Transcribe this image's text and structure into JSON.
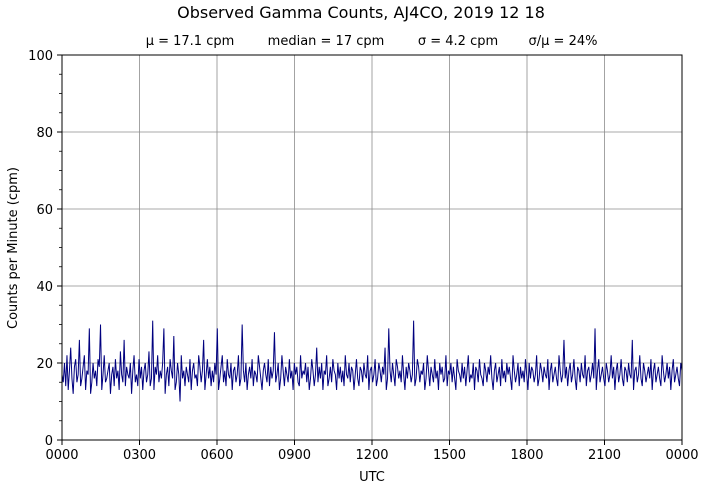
{
  "chart_data": {
    "type": "line",
    "title": "Observed Gamma Counts, AJ4CO, 2019 12 18",
    "subtitle_stats": [
      "μ = 17.1 cpm",
      "median = 17 cpm",
      "σ = 4.2 cpm",
      "σ/μ = 24%"
    ],
    "xlabel": "UTC",
    "ylabel": "Counts per Minute (cpm)",
    "x_unit": "minutes of day (UTC)",
    "xlim": [
      0,
      1440
    ],
    "ylim": [
      0,
      100
    ],
    "x_ticks": [
      {
        "value": 0,
        "label": "0000"
      },
      {
        "value": 180,
        "label": "0300"
      },
      {
        "value": 360,
        "label": "0600"
      },
      {
        "value": 540,
        "label": "0900"
      },
      {
        "value": 720,
        "label": "1200"
      },
      {
        "value": 900,
        "label": "1500"
      },
      {
        "value": 1080,
        "label": "1800"
      },
      {
        "value": 1260,
        "label": "2100"
      },
      {
        "value": 1440,
        "label": "0000"
      }
    ],
    "y_ticks": [
      {
        "value": 0,
        "label": "0"
      },
      {
        "value": 20,
        "label": "20"
      },
      {
        "value": 40,
        "label": "40"
      },
      {
        "value": 60,
        "label": "60"
      },
      {
        "value": 80,
        "label": "80"
      },
      {
        "value": 100,
        "label": "100"
      }
    ],
    "y_minor_step": 5,
    "grid": true,
    "series": [
      {
        "color": "#00007f",
        "x_step": 5,
        "values": [
          17,
          15,
          20,
          14,
          22,
          13,
          18,
          24,
          16,
          12,
          19,
          21,
          15,
          17,
          26,
          14,
          16,
          19,
          22,
          13,
          18,
          17,
          29,
          12,
          15,
          20,
          16,
          18,
          14,
          21,
          19,
          30,
          13,
          17,
          22,
          15,
          16,
          18,
          20,
          12,
          17,
          19,
          14,
          21,
          16,
          18,
          13,
          23,
          17,
          15,
          26,
          14,
          19,
          17,
          16,
          20,
          12,
          18,
          22,
          15,
          17,
          14,
          21,
          16,
          19,
          13,
          18,
          20,
          15,
          17,
          23,
          14,
          16,
          31,
          13,
          19,
          17,
          22,
          15,
          18,
          16,
          20,
          29,
          12,
          17,
          19,
          14,
          21,
          18,
          16,
          27,
          13,
          15,
          20,
          17,
          10,
          22,
          16,
          18,
          14,
          19,
          17,
          15,
          21,
          13,
          18,
          20,
          16,
          17,
          14,
          22,
          19,
          15,
          18,
          26,
          13,
          17,
          21,
          16,
          19,
          14,
          18,
          15,
          20,
          17,
          29,
          13,
          16,
          19,
          22,
          15,
          18,
          14,
          21,
          17,
          16,
          20,
          13,
          18,
          19,
          15,
          17,
          22,
          14,
          16,
          30,
          18,
          15,
          20,
          13,
          17,
          19,
          16,
          21,
          14,
          18,
          17,
          15,
          22,
          19,
          16,
          13,
          18,
          20,
          17,
          15,
          21,
          14,
          19,
          16,
          18,
          28,
          15,
          17,
          20,
          13,
          16,
          22,
          18,
          14,
          19,
          17,
          15,
          21,
          16,
          18,
          13,
          20,
          17,
          19,
          15,
          14,
          22,
          16,
          18,
          17,
          20,
          15,
          19,
          13,
          16,
          21,
          18,
          14,
          17,
          24,
          15,
          19,
          16,
          20,
          13,
          18,
          17,
          22,
          14,
          16,
          19,
          15,
          21,
          18,
          17,
          13,
          20,
          16,
          19,
          15,
          18,
          14,
          22,
          17,
          16,
          20,
          15,
          19,
          18,
          13,
          17,
          21,
          16,
          14,
          19,
          18,
          15,
          20,
          17,
          16,
          22,
          13,
          18,
          19,
          15,
          17,
          21,
          14,
          16,
          20,
          18,
          15,
          19,
          17,
          24,
          13,
          16,
          29,
          18,
          15,
          20,
          17,
          14,
          21,
          19,
          16,
          18,
          15,
          22,
          17,
          13,
          19,
          16,
          20,
          18,
          15,
          17,
          31,
          14,
          16,
          21,
          19,
          15,
          18,
          17,
          20,
          13,
          16,
          22,
          18,
          14,
          19,
          17,
          15,
          21,
          16,
          18,
          13,
          20,
          17,
          19,
          15,
          16,
          22,
          14,
          18,
          17,
          20,
          15,
          19,
          16,
          13,
          21,
          18,
          17,
          15,
          20,
          16,
          19,
          14,
          18,
          22,
          15,
          17,
          16,
          20,
          13,
          19,
          18,
          15,
          21,
          17,
          16,
          14,
          20,
          18,
          15,
          19,
          17,
          22,
          16,
          13,
          18,
          20,
          15,
          17,
          19,
          14,
          21,
          16,
          18,
          15,
          20,
          17,
          19,
          16,
          13,
          22,
          18,
          15,
          17,
          20,
          14,
          19,
          16,
          18,
          15,
          21,
          17,
          13,
          20,
          16,
          19,
          18,
          15,
          17,
          22,
          14,
          16,
          20,
          18,
          15,
          19,
          17,
          16,
          21,
          13,
          18,
          20,
          15,
          17,
          19,
          16,
          14,
          22,
          18,
          15,
          17,
          26,
          16,
          19,
          14,
          18,
          20,
          15,
          17,
          21,
          16,
          13,
          19,
          18,
          15,
          20,
          17,
          16,
          22,
          14,
          18,
          19,
          15,
          17,
          20,
          16,
          29,
          13,
          18,
          21,
          15,
          17,
          19,
          16,
          14,
          20,
          18,
          15,
          17,
          22,
          16,
          19,
          13,
          18,
          20,
          15,
          17,
          21,
          16,
          14,
          19,
          18,
          15,
          20,
          17,
          16,
          26,
          13,
          18,
          19,
          15,
          17,
          22,
          16,
          14,
          20,
          18,
          15,
          17,
          19,
          16,
          21,
          13,
          18,
          20,
          15,
          17,
          19,
          16,
          14,
          22,
          18,
          15,
          17,
          20,
          16,
          19,
          13,
          18,
          21,
          15,
          17,
          19,
          16,
          14,
          20,
          18
        ]
      }
    ]
  }
}
